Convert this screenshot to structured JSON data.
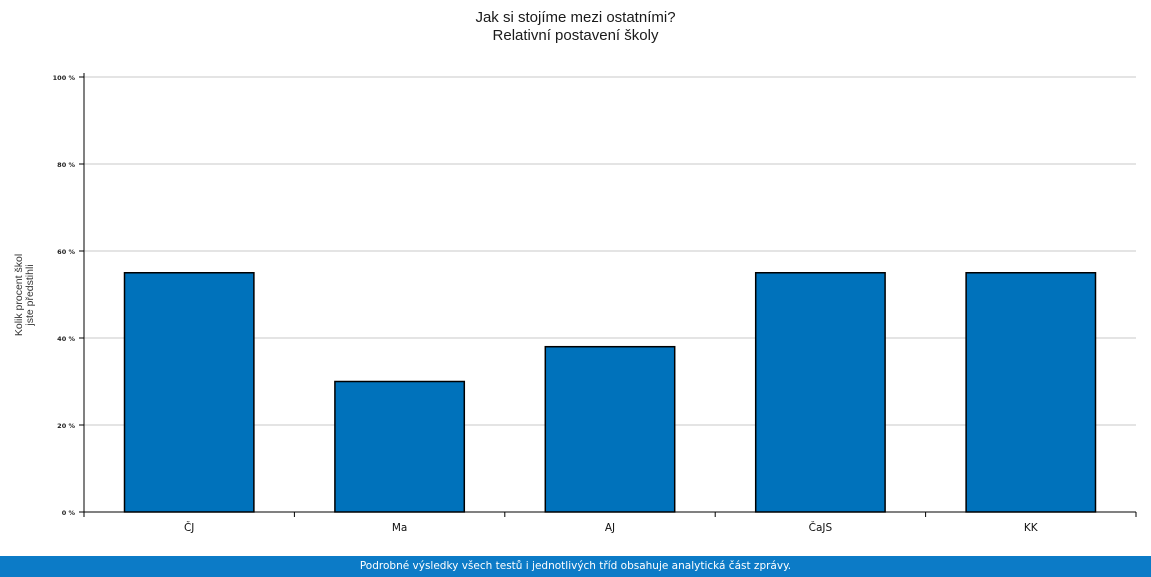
{
  "chart_data": {
    "type": "bar",
    "title": "Jak si stojíme mezi ostatními?",
    "subtitle": "Relativní postavení školy",
    "ylabel": "Kolik procent škol jste předstihli",
    "ylabel_lines": [
      "Kolik procent škol",
      "jste předstihli"
    ],
    "xlabel": "",
    "categories": [
      "ČJ",
      "Ma",
      "AJ",
      "ČaJS",
      "KK"
    ],
    "values": [
      55,
      30,
      38,
      55,
      55
    ],
    "ylim": [
      0,
      100
    ],
    "yticks": [
      0,
      20,
      40,
      60,
      80,
      100
    ],
    "ytick_labels": [
      "0 %",
      "20 %",
      "40 %",
      "60 %",
      "80 %",
      "100 %"
    ],
    "grid": true,
    "legend": "none",
    "bar_color": "#0072bb",
    "bar_edge_color": "#000000"
  },
  "footer": {
    "text": "Podrobné výsledky všech testů i jednotlivých tříd obsahuje analytická část zprávy.",
    "background": "#0c7bc7"
  }
}
